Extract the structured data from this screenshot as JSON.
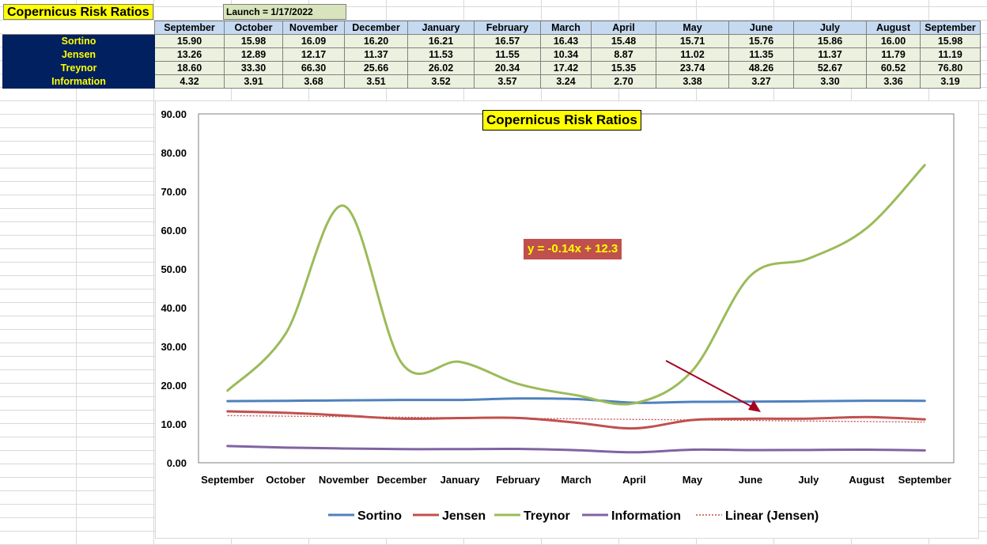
{
  "sheet": {
    "title": "Copernicus Risk Ratios",
    "launch_label": "Launch = 1/17/2022"
  },
  "table": {
    "columns": [
      "September",
      "October",
      "November",
      "December",
      "January",
      "February",
      "March",
      "April",
      "May",
      "June",
      "July",
      "August",
      "September"
    ],
    "rows": [
      {
        "label": "Sortino",
        "values": [
          "15.90",
          "15.98",
          "16.09",
          "16.20",
          "16.21",
          "16.57",
          "16.43",
          "15.48",
          "15.71",
          "15.76",
          "15.86",
          "16.00",
          "15.98"
        ]
      },
      {
        "label": "Jensen",
        "values": [
          "13.26",
          "12.89",
          "12.17",
          "11.37",
          "11.53",
          "11.55",
          "10.34",
          "8.87",
          "11.02",
          "11.35",
          "11.37",
          "11.79",
          "11.19"
        ]
      },
      {
        "label": "Treynor",
        "values": [
          "18.60",
          "33.30",
          "66.30",
          "25.66",
          "26.02",
          "20.34",
          "17.42",
          "15.35",
          "23.74",
          "48.26",
          "52.67",
          "60.52",
          "76.80"
        ]
      },
      {
        "label": "Information",
        "values": [
          "4.32",
          "3.91",
          "3.68",
          "3.51",
          "3.52",
          "3.57",
          "3.24",
          "2.70",
          "3.38",
          "3.27",
          "3.30",
          "3.36",
          "3.19"
        ]
      }
    ]
  },
  "chart_data": {
    "type": "line",
    "title": "Copernicus Risk Ratios",
    "categories": [
      "September",
      "October",
      "November",
      "December",
      "January",
      "February",
      "March",
      "April",
      "May",
      "June",
      "July",
      "August",
      "September"
    ],
    "series": [
      {
        "name": "Sortino",
        "color": "#4f81bd",
        "values": [
          15.9,
          15.98,
          16.09,
          16.2,
          16.21,
          16.57,
          16.43,
          15.48,
          15.71,
          15.76,
          15.86,
          16.0,
          15.98
        ]
      },
      {
        "name": "Jensen",
        "color": "#c0504d",
        "values": [
          13.26,
          12.89,
          12.17,
          11.37,
          11.53,
          11.55,
          10.34,
          8.87,
          11.02,
          11.35,
          11.37,
          11.79,
          11.19
        ]
      },
      {
        "name": "Treynor",
        "color": "#9bbb59",
        "values": [
          18.6,
          33.3,
          66.3,
          25.66,
          26.02,
          20.34,
          17.42,
          15.35,
          23.74,
          48.26,
          52.67,
          60.52,
          76.8
        ]
      },
      {
        "name": "Information",
        "color": "#8064a2",
        "values": [
          4.32,
          3.91,
          3.68,
          3.51,
          3.52,
          3.57,
          3.24,
          2.7,
          3.38,
          3.27,
          3.3,
          3.36,
          3.19
        ]
      }
    ],
    "trendline": {
      "name": "Linear (Jensen)",
      "series": "Jensen",
      "slope": -0.14,
      "intercept": 12.3,
      "equation": "y = -0.14x + 12.3",
      "color": "#c0504d",
      "style": "dotted"
    },
    "y_ticks": [
      "0.00",
      "10.00",
      "20.00",
      "30.00",
      "40.00",
      "50.00",
      "60.00",
      "70.00",
      "80.00",
      "90.00"
    ],
    "ylim": [
      0,
      90
    ],
    "grid": false,
    "legend_position": "bottom",
    "annotation_arrow_color": "#a50021"
  }
}
